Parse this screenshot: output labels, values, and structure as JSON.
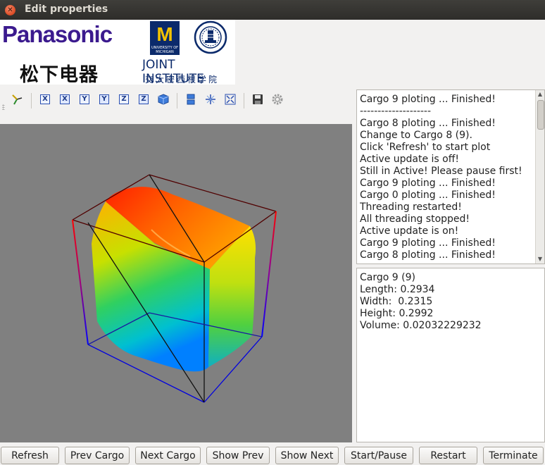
{
  "window": {
    "title": "Edit properties"
  },
  "logos": {
    "panasonic_word": "Panasonic",
    "panasonic_cn": "松下电器",
    "ji_title": "JOINT INSTITUTE",
    "ji_cn": "交大密西根学院"
  },
  "toolbar": {
    "icons": [
      "axes-icon",
      "view-x-icon",
      "view-x-minus-icon",
      "view-y-icon",
      "view-y-minus-icon",
      "view-z-icon",
      "view-z-minus-icon",
      "iso-view-icon",
      "two-views-icon",
      "reset-view-icon",
      "fullscreen-icon",
      "save-icon",
      "settings-icon"
    ],
    "x_label": "X",
    "y_label": "Y",
    "z_label": "Z"
  },
  "log": {
    "lines": [
      "Cargo 9 ploting ...  Finished!",
      "--------------------",
      "Cargo 8 ploting ...  Finished!",
      "Change to Cargo 8 (9).",
      "Click 'Refresh' to start plot",
      "Active update is off!",
      "Still in Active!  Please pause first!",
      "Cargo 9 ploting ...  Finished!",
      "Cargo 0 ploting ...  Finished!",
      "Threading restarted!",
      "All threading stopped!",
      "Active update is on!",
      "Cargo 9 ploting ...  Finished!",
      "Cargo 8 ploting ...  Finished!"
    ]
  },
  "info": {
    "lines": [
      "Cargo 9 (9)",
      "Length: 0.2934",
      "Width:  0.2315",
      "Height: 0.2992",
      "Volume: 0.02032229232"
    ]
  },
  "buttons": {
    "refresh": "Refresh",
    "prev_cargo": "Prev Cargo",
    "next_cargo": "Next Cargo",
    "show_prev": "Show Prev",
    "show_next": "Show Next",
    "start_pause": "Start/Pause",
    "restart": "Restart",
    "terminate": "Terminate"
  },
  "colors": {
    "panasonic": "#3b1a8e",
    "michigan_blue": "#0b2a6b",
    "michigan_maize": "#f2c200",
    "viewport_bg": "#808080"
  }
}
